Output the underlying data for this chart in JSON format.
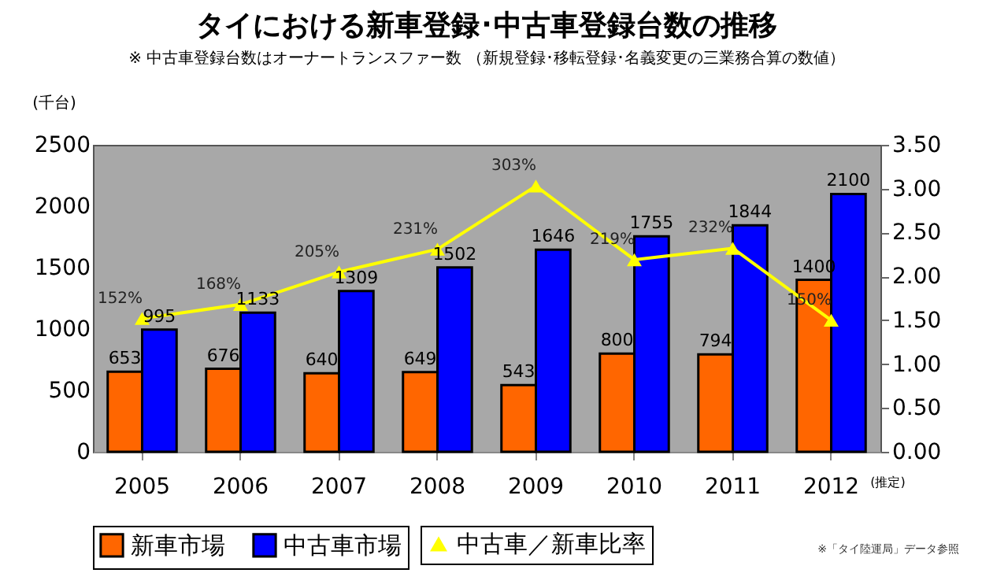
{
  "chart_data": {
    "type": "bar",
    "title": "タイにおける新車登録･中古車登録台数の推移",
    "subtitle": "※ 中古車登録台数はオーナートランスファー数 （新規登録･移転登録･名義変更の三業務合算の数値）",
    "ylabel": "(千台)",
    "categories": [
      "2005",
      "2006",
      "2007",
      "2008",
      "2009",
      "2010",
      "2011",
      "2012"
    ],
    "series": [
      {
        "name": "新車市場",
        "color": "#ff6600",
        "values": [
          653,
          676,
          640,
          649,
          543,
          800,
          794,
          1400
        ]
      },
      {
        "name": "中古車市場",
        "color": "#0000ff",
        "values": [
          995,
          1133,
          1309,
          1502,
          1646,
          1755,
          1844,
          2100
        ]
      },
      {
        "name": "中古車／新車比率",
        "type": "line",
        "axis": "y2",
        "color": "#ffff00",
        "marker": "triangle",
        "values": [
          1.52,
          1.68,
          2.05,
          2.31,
          3.03,
          2.19,
          2.32,
          1.5
        ],
        "value_labels": [
          "152%",
          "168%",
          "205%",
          "231%",
          "303%",
          "219%",
          "232%",
          "150%"
        ]
      }
    ],
    "data_labels": true,
    "ylim": [
      0,
      2500
    ],
    "yticks": [
      0,
      500,
      1000,
      1500,
      2000,
      2500
    ],
    "y2lim": [
      0,
      3.5
    ],
    "y2ticks": [
      {
        "value": 0,
        "label": "0.00"
      },
      {
        "value": 0.5,
        "label": "0.50"
      },
      {
        "value": 1,
        "label": "1.00"
      },
      {
        "value": 1.5,
        "label": "1.50"
      },
      {
        "value": 2,
        "label": "2.00"
      },
      {
        "value": 2.5,
        "label": "2.50"
      },
      {
        "value": 3,
        "label": "3.00"
      },
      {
        "value": 3.5,
        "label": "3.50"
      }
    ],
    "grid": false,
    "legend": "bottom",
    "annotations": [
      "(推定)",
      "※「タイ陸運局」データ参照"
    ]
  }
}
